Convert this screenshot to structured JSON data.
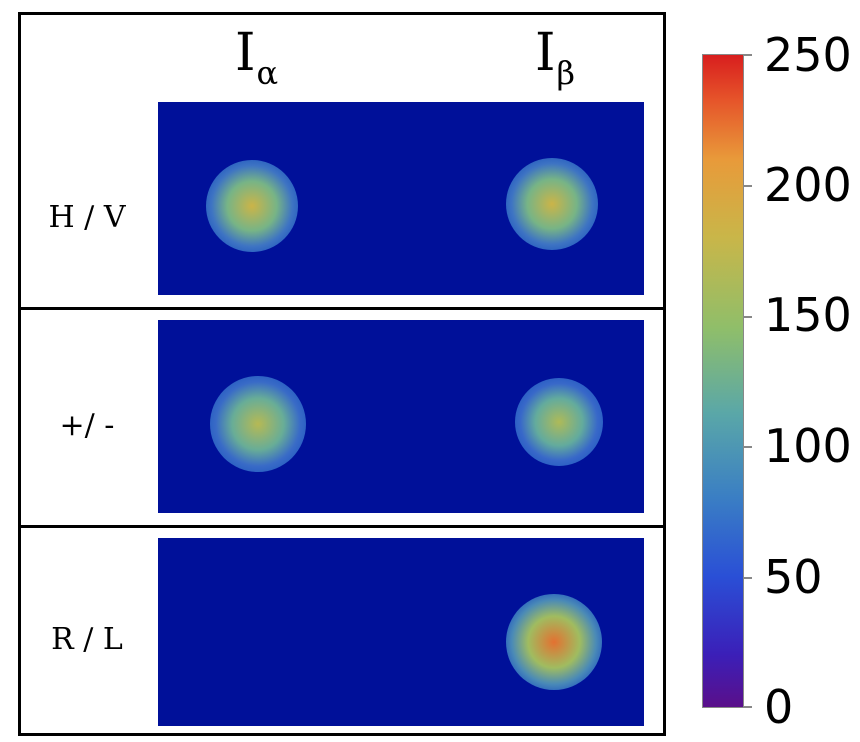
{
  "columns": [
    {
      "main": "I",
      "sub": "α"
    },
    {
      "main": "I",
      "sub": "β"
    }
  ],
  "rows": [
    {
      "label": "H / V",
      "spots": [
        {
          "present": true,
          "peak": 190
        },
        {
          "present": true,
          "peak": 190
        }
      ]
    },
    {
      "label": "+/ -",
      "spots": [
        {
          "present": true,
          "peak": 175
        },
        {
          "present": true,
          "peak": 170
        }
      ]
    },
    {
      "label": "R / L",
      "spots": [
        {
          "present": false,
          "peak": 0
        },
        {
          "present": true,
          "peak": 230
        }
      ]
    }
  ],
  "colorbar": {
    "ticks": [
      "250",
      "200",
      "150",
      "100",
      "50",
      "0"
    ],
    "min": 0,
    "max": 250
  },
  "colors": {
    "background": "#001099",
    "colormap": "jet"
  }
}
